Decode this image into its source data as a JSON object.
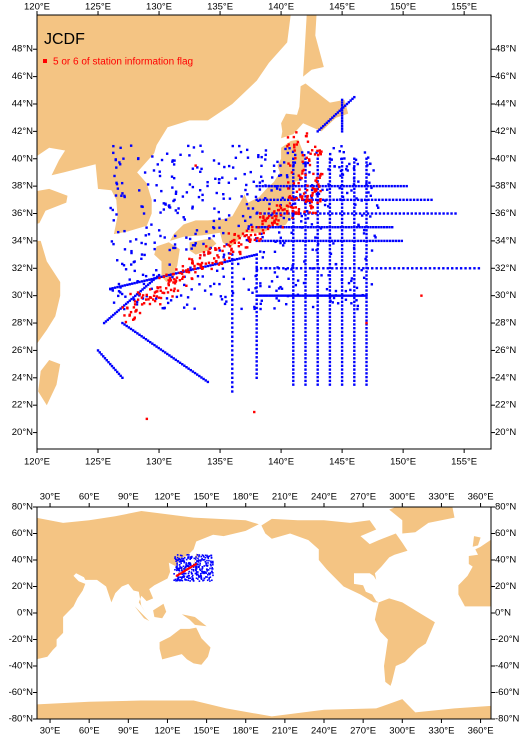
{
  "maps": [
    {
      "title": "JCDF",
      "legend": "5 or 6 of station information flag",
      "legend_color": "#ff0000",
      "xlim": [
        120,
        157.2
      ],
      "ylim": [
        18.8,
        50.5
      ],
      "xticks": [
        {
          "value": 120,
          "label": "120°E"
        },
        {
          "value": 125,
          "label": "125°E"
        },
        {
          "value": 130,
          "label": "130°E"
        },
        {
          "value": 135,
          "label": "135°E"
        },
        {
          "value": 140,
          "label": "140°E"
        },
        {
          "value": 145,
          "label": "145°E"
        },
        {
          "value": 150,
          "label": "150°E"
        },
        {
          "value": 155,
          "label": "155°E"
        }
      ],
      "yticks": [
        {
          "value": 20,
          "label": "20°N"
        },
        {
          "value": 22,
          "label": "22°N"
        },
        {
          "value": 24,
          "label": "24°N"
        },
        {
          "value": 26,
          "label": "26°N"
        },
        {
          "value": 28,
          "label": "28°N"
        },
        {
          "value": 30,
          "label": "30°N"
        },
        {
          "value": 32,
          "label": "32°N"
        },
        {
          "value": 34,
          "label": "34°N"
        },
        {
          "value": 36,
          "label": "36°N"
        },
        {
          "value": 38,
          "label": "38°N"
        },
        {
          "value": 40,
          "label": "40°N"
        },
        {
          "value": 42,
          "label": "42°N"
        },
        {
          "value": 44,
          "label": "44°N"
        },
        {
          "value": 46,
          "label": "46°N"
        },
        {
          "value": 48,
          "label": "48°N"
        }
      ]
    },
    {
      "xlim": [
        20,
        368
      ],
      "ylim": [
        -80,
        80
      ],
      "xticks": [
        {
          "value": 30,
          "label": "30°E"
        },
        {
          "value": 60,
          "label": "60°E"
        },
        {
          "value": 90,
          "label": "90°E"
        },
        {
          "value": 120,
          "label": "120°E"
        },
        {
          "value": 150,
          "label": "150°E"
        },
        {
          "value": 180,
          "label": "180°E"
        },
        {
          "value": 210,
          "label": "210°E"
        },
        {
          "value": 240,
          "label": "240°E"
        },
        {
          "value": 270,
          "label": "270°E"
        },
        {
          "value": 300,
          "label": "300°E"
        },
        {
          "value": 330,
          "label": "330°E"
        },
        {
          "value": 360,
          "label": "360°E"
        }
      ],
      "yticks": [
        {
          "value": -80,
          "label": "-80°N"
        },
        {
          "value": -60,
          "label": "-60°N"
        },
        {
          "value": -40,
          "label": "-40°N"
        },
        {
          "value": -20,
          "label": "-20°N"
        },
        {
          "value": 0,
          "label": "0°N"
        },
        {
          "value": 20,
          "label": "20°N"
        },
        {
          "value": 40,
          "label": "40°N"
        },
        {
          "value": 60,
          "label": "60°N"
        },
        {
          "value": 80,
          "label": "80°N"
        }
      ]
    }
  ]
}
